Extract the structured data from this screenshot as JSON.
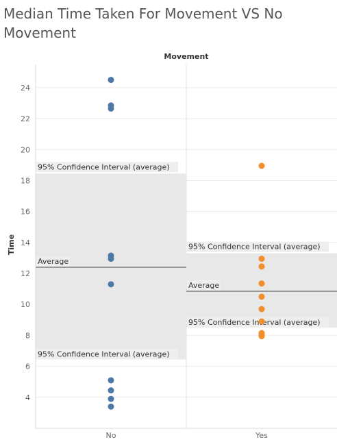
{
  "chart_data": {
    "type": "scatter",
    "title": "Median Time Taken For Movement VS No Movement",
    "column_header": "Movement",
    "ylabel": "Time",
    "ylim": [
      2,
      25.5
    ],
    "yticks": [
      4,
      6,
      8,
      10,
      12,
      14,
      16,
      18,
      20,
      22,
      24
    ],
    "categories": [
      "No",
      "Yes"
    ],
    "grid": true,
    "series": [
      {
        "category": "No",
        "color": "#4e79a7",
        "values": [
          24.5,
          22.85,
          22.65,
          13.15,
          12.95,
          11.3,
          5.1,
          4.45,
          3.9,
          3.4
        ]
      },
      {
        "category": "Yes",
        "color": "#f28e2b",
        "values": [
          18.95,
          12.95,
          12.45,
          11.35,
          10.5,
          9.7,
          8.9,
          8.15,
          8.05,
          7.95
        ]
      }
    ],
    "reference_bands": [
      {
        "category": "No",
        "average": 12.4,
        "ci_low": 6.45,
        "ci_high": 18.45,
        "average_label": "Average",
        "upper_label": "95% Confidence Interval (average)",
        "lower_label": "95% Confidence Interval (average)"
      },
      {
        "category": "Yes",
        "average": 10.85,
        "ci_low": 8.5,
        "ci_high": 13.3,
        "average_label": "Average",
        "upper_label": "95% Confidence Interval (average)",
        "lower_label": "95% Confidence Interval (average)"
      }
    ],
    "band_color": "#e8e8e8",
    "average_line_color": "#999999"
  }
}
